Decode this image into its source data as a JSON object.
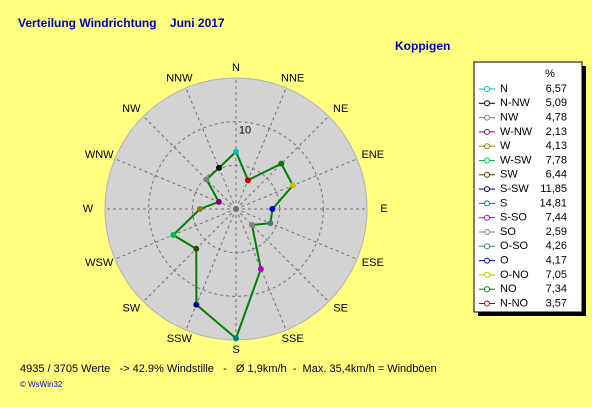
{
  "chart_data": {
    "type": "windrose",
    "title": "Verteilung Windrichtung    Juni 2017",
    "subtitle": "Koppigen",
    "axis_labels": [
      "N",
      "NNE",
      "NE",
      "ENE",
      "E",
      "ESE",
      "SE",
      "SSE",
      "S",
      "SSW",
      "SW",
      "WSW",
      "W",
      "WNW",
      "NW",
      "NNW"
    ],
    "rlim": [
      0,
      15
    ],
    "rings": [
      5,
      10
    ],
    "rticks": [
      10
    ],
    "line_color": "#008000",
    "legend_title": "%",
    "categories": [
      "N",
      "N-NW",
      "NW",
      "W-NW",
      "W",
      "W-SW",
      "SW",
      "S-SW",
      "S",
      "S-SO",
      "SO",
      "O-SO",
      "O",
      "O-NO",
      "NO",
      "N-NO"
    ],
    "values": [
      6.57,
      5.09,
      4.78,
      2.13,
      4.13,
      7.78,
      6.44,
      11.85,
      14.81,
      7.44,
      2.59,
      4.26,
      4.17,
      7.05,
      7.34,
      3.57
    ],
    "value_labels": [
      "6,57",
      "5,09",
      "4,78",
      "2,13",
      "4,13",
      "7,78",
      "6,44",
      "11,85",
      "14,81",
      "7,44",
      "2,59",
      "4,26",
      "4,17",
      "7,05",
      "7,34",
      "3,57"
    ],
    "colors": [
      "#00c0c0",
      "#000000",
      "#808080",
      "#800080",
      "#808000",
      "#00c040",
      "#404000",
      "#000080",
      "#008080",
      "#c000c0",
      "#808080",
      "#408080",
      "#0000c0",
      "#c0c000",
      "#008000",
      "#c00000"
    ],
    "footer": "4935 / 3705 Werte   -> 42.9% Windstille   -   Ø 1,9km/h  -  Max. 35,4km/h = Windböen",
    "credit": "© WsWin32"
  }
}
